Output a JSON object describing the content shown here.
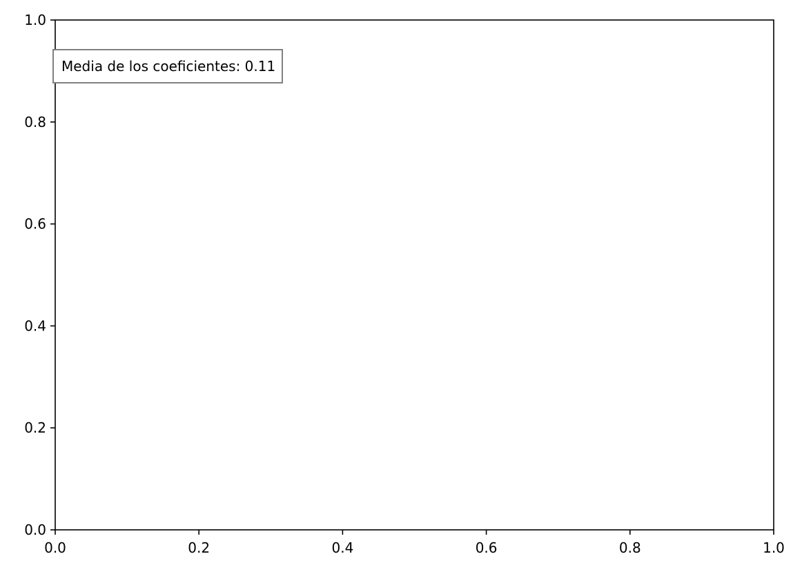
{
  "chart_data": {
    "type": "scatter",
    "title": "",
    "xlabel": "",
    "ylabel": "",
    "xlim": [
      0,
      1
    ],
    "ylim": [
      0,
      1
    ],
    "x_ticks": [
      {
        "value": 0.0,
        "label": "0.0"
      },
      {
        "value": 0.2,
        "label": "0.2"
      },
      {
        "value": 0.4,
        "label": "0.4"
      },
      {
        "value": 0.6,
        "label": "0.6"
      },
      {
        "value": 0.8,
        "label": "0.8"
      },
      {
        "value": 1.0,
        "label": "1.0"
      }
    ],
    "y_ticks": [
      {
        "value": 0.0,
        "label": "0.0"
      },
      {
        "value": 0.2,
        "label": "0.2"
      },
      {
        "value": 0.4,
        "label": "0.4"
      },
      {
        "value": 0.6,
        "label": "0.6"
      },
      {
        "value": 0.8,
        "label": "0.8"
      },
      {
        "value": 1.0,
        "label": "1.0"
      }
    ],
    "series": [],
    "grid": false,
    "annotation": {
      "text": "Media de los coeficientes: 0.11",
      "placement": "top-left"
    },
    "colors": {
      "axes": "#000000",
      "annotation_border": "#808080",
      "background": "#ffffff"
    }
  }
}
